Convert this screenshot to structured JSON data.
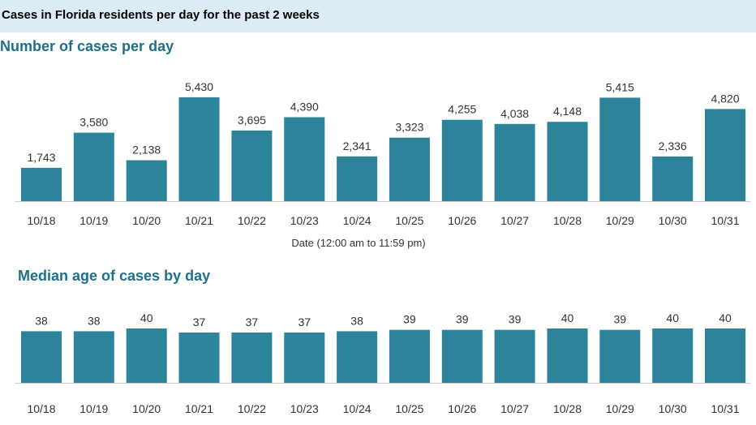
{
  "header": {
    "title": "Cases in Florida residents per day for the past 2 weeks"
  },
  "colors": {
    "bar": "#2b8499",
    "header_band": "#dcecf2",
    "section_title": "#1f6f8b"
  },
  "chart_data": [
    {
      "type": "bar",
      "title": "Number of cases per day",
      "xlabel": "Date (12:00 am to 11:59 pm)",
      "ylabel": "",
      "categories": [
        "10/18",
        "10/19",
        "10/20",
        "10/21",
        "10/22",
        "10/23",
        "10/24",
        "10/25",
        "10/26",
        "10/27",
        "10/28",
        "10/29",
        "10/30",
        "10/31"
      ],
      "values": [
        1743,
        3580,
        2138,
        5430,
        3695,
        4390,
        2341,
        3323,
        4255,
        4038,
        4148,
        5415,
        2336,
        4820
      ],
      "value_labels": [
        "1,743",
        "3,580",
        "2,138",
        "5,430",
        "3,695",
        "4,390",
        "2,341",
        "3,323",
        "4,255",
        "4,038",
        "4,148",
        "5,415",
        "2,336",
        "4,820"
      ],
      "ylim": [
        0,
        5430
      ],
      "grid": false,
      "legend": "none"
    },
    {
      "type": "bar",
      "title": "Median age of cases by day",
      "xlabel": "",
      "ylabel": "",
      "categories": [
        "10/18",
        "10/19",
        "10/20",
        "10/21",
        "10/22",
        "10/23",
        "10/24",
        "10/25",
        "10/26",
        "10/27",
        "10/28",
        "10/29",
        "10/30",
        "10/31"
      ],
      "values": [
        38,
        38,
        40,
        37,
        37,
        37,
        38,
        39,
        39,
        39,
        40,
        39,
        40,
        40
      ],
      "value_labels": [
        "38",
        "38",
        "40",
        "37",
        "37",
        "37",
        "38",
        "39",
        "39",
        "39",
        "40",
        "39",
        "40",
        "40"
      ],
      "ylim": [
        0,
        40
      ],
      "grid": false,
      "legend": "none"
    }
  ]
}
